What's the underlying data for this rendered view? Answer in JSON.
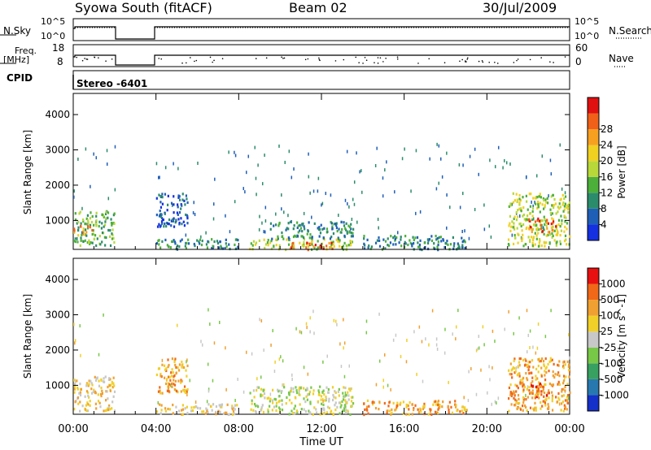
{
  "header": {
    "station": "Syowa South (fitACF)",
    "beam": "Beam 02",
    "date": "30/Jul/2009"
  },
  "left_labels": {
    "nsky": "N.Sky",
    "freq": "Freq.",
    "freq_unit": "[MHz]",
    "cpid": "CPID"
  },
  "right_labels": {
    "nsearch": "N.Search",
    "nave": "Nave"
  },
  "cpid_text": "Stereo -6401",
  "noise_panel": {
    "left_ticks": [
      "10^5",
      "10^0"
    ],
    "right_ticks": [
      "10^5",
      "10^0"
    ]
  },
  "freq_panel": {
    "left_ticks": [
      "18",
      "8"
    ],
    "right_ticks": [
      "60",
      "0"
    ]
  },
  "chart_data": [
    {
      "type": "heatmap",
      "name": "power",
      "ylabel": "Slant Range [km]",
      "xlabel": "",
      "x_ticks": [
        "00:00",
        "04:00",
        "08:00",
        "12:00",
        "16:00",
        "20:00",
        "00:00"
      ],
      "y_ticks": [
        "1000",
        "2000",
        "3000",
        "4000"
      ],
      "xlim": [
        0,
        24
      ],
      "ylim": [
        180,
        4600
      ],
      "colorbar": {
        "label": "Power [dB]",
        "ticks": [
          "4",
          "8",
          "12",
          "16",
          "20",
          "24",
          "28"
        ],
        "colors": [
          "#1430e0",
          "#1f5fb8",
          "#2b8c6c",
          "#4caf3a",
          "#b8d83a",
          "#f0d020",
          "#f7a020",
          "#f06018",
          "#e01010"
        ]
      },
      "clusters": [
        {
          "t": [
            0.0,
            2.0
          ],
          "r": [
            300,
            1300
          ],
          "level": 3
        },
        {
          "t": [
            0.0,
            0.9
          ],
          "r": [
            600,
            900
          ],
          "level": 6
        },
        {
          "t": [
            4.0,
            8.0
          ],
          "r": [
            200,
            500
          ],
          "level": 2
        },
        {
          "t": [
            4.0,
            5.5
          ],
          "r": [
            800,
            1800
          ],
          "level": 1
        },
        {
          "t": [
            8.5,
            13.5
          ],
          "r": [
            200,
            500
          ],
          "level": 4
        },
        {
          "t": [
            10.5,
            12.5
          ],
          "r": [
            200,
            400
          ],
          "level": 7
        },
        {
          "t": [
            9.5,
            13.5
          ],
          "r": [
            500,
            1000
          ],
          "level": 2
        },
        {
          "t": [
            14.0,
            19.0
          ],
          "r": [
            200,
            600
          ],
          "level": 2
        },
        {
          "t": [
            21.0,
            24.0
          ],
          "r": [
            300,
            1800
          ],
          "level": 4
        },
        {
          "t": [
            22.0,
            23.3
          ],
          "r": [
            700,
            1100
          ],
          "level": 7
        }
      ]
    },
    {
      "type": "heatmap",
      "name": "velocity",
      "ylabel": "Slant Range [km]",
      "xlabel": "Time UT",
      "x_ticks": [
        "00:00",
        "04:00",
        "08:00",
        "12:00",
        "16:00",
        "20:00",
        "00:00"
      ],
      "y_ticks": [
        "1000",
        "2000",
        "3000",
        "4000"
      ],
      "xlim": [
        0,
        24
      ],
      "ylim": [
        180,
        4600
      ],
      "colorbar": {
        "label": "Velocity [m s^-1]",
        "ticks": [
          "1000",
          "500",
          "100",
          "25",
          "-25",
          "-100",
          "-500",
          "-1000"
        ],
        "colors": [
          "#1430c8",
          "#2878b0",
          "#38a060",
          "#78c848",
          "#c8c8c8",
          "#f0d028",
          "#f0a030",
          "#f06818",
          "#e81010"
        ]
      },
      "clusters": [
        {
          "t": [
            0.0,
            2.0
          ],
          "r": [
            300,
            1300
          ],
          "level": 5
        },
        {
          "t": [
            4.0,
            8.0
          ],
          "r": [
            200,
            500
          ],
          "level": 5
        },
        {
          "t": [
            4.0,
            5.5
          ],
          "r": [
            800,
            1800
          ],
          "level": 6
        },
        {
          "t": [
            8.5,
            13.5
          ],
          "r": [
            200,
            1000
          ],
          "level": 4
        },
        {
          "t": [
            14.0,
            19.0
          ],
          "r": [
            200,
            600
          ],
          "level": 6
        },
        {
          "t": [
            21.0,
            24.0
          ],
          "r": [
            300,
            1800
          ],
          "level": 6
        },
        {
          "t": [
            22.0,
            23.3
          ],
          "r": [
            700,
            1100
          ],
          "level": 7
        }
      ]
    }
  ]
}
